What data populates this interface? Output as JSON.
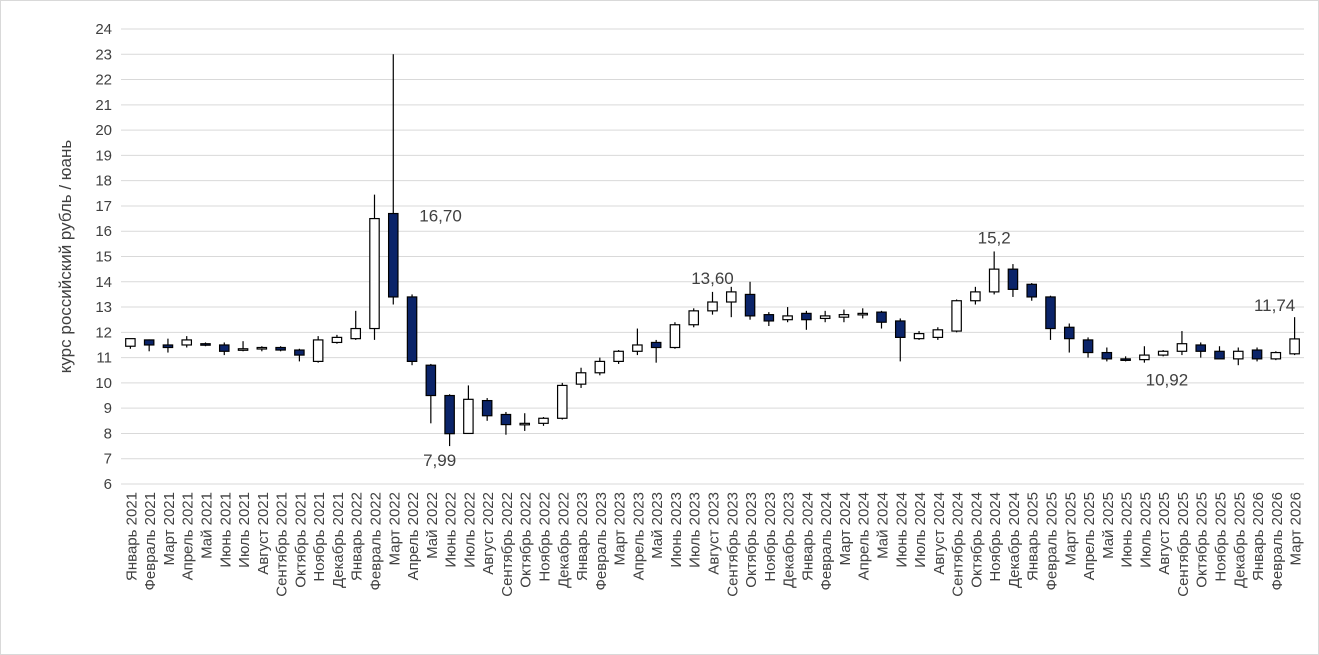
{
  "chart_data": {
    "type": "candlestick",
    "ylabel": "курс российский рубль / юань",
    "ylim": [
      6,
      24
    ],
    "ytick_step": 1,
    "grid": true,
    "colors": {
      "up_fill": "#ffffff",
      "down_fill": "#0b2469",
      "outline": "#000000",
      "grid": "#d9d9d9",
      "text": "#404040"
    },
    "categories": [
      "Январь 2021",
      "Февраль 2021",
      "Март 2021",
      "Апрель 2021",
      "Май 2021",
      "Июнь 2021",
      "Июль 2021",
      "Август 2021",
      "Сентябрь 2021",
      "Октябрь 2021",
      "Ноябрь 2021",
      "Декабрь 2021",
      "Январь 2022",
      "Февраль 2022",
      "Март 2022",
      "Апрель 2022",
      "Май 2022",
      "Июнь 2022",
      "Июль 2022",
      "Август 2022",
      "Сентябрь 2022",
      "Октябрь 2022",
      "Ноябрь 2022",
      "Декабрь 2022",
      "Январь 2023",
      "Февраль 2023",
      "Март 2023",
      "Апрель 2023",
      "Май 2023",
      "Июнь 2023",
      "Июль 2023",
      "Август 2023",
      "Сентябрь 2023",
      "Октябрь 2023",
      "Ноябрь 2023",
      "Декабрь 2023",
      "Январь 2024",
      "Февраль 2024",
      "Март 2024",
      "Апрель 2024",
      "Май 2024",
      "Июнь 2024",
      "Июль 2024",
      "Август 2024",
      "Сентябрь 2024",
      "Октябрь 2024",
      "Ноябрь 2024",
      "Декабрь 2024",
      "Январь 2025",
      "Февраль 2025",
      "Март 2025",
      "Апрель 2025",
      "Май 2025",
      "Июнь 2025",
      "Июль 2025",
      "Август 2025",
      "Сентябрь 2025",
      "Октябрь 2025",
      "Ноябрь 2025",
      "Декабрь 2025",
      "Январь 2026",
      "Февраль 2026",
      "Март 2026"
    ],
    "ohlc": [
      [
        11.45,
        11.75,
        11.35,
        11.75
      ],
      [
        11.7,
        11.72,
        11.25,
        11.5
      ],
      [
        11.5,
        11.75,
        11.2,
        11.4
      ],
      [
        11.5,
        11.85,
        11.4,
        11.7
      ],
      [
        11.55,
        11.6,
        11.45,
        11.5
      ],
      [
        11.5,
        11.6,
        11.1,
        11.25
      ],
      [
        11.3,
        11.65,
        11.25,
        11.35
      ],
      [
        11.35,
        11.45,
        11.25,
        11.4
      ],
      [
        11.4,
        11.45,
        11.25,
        11.3
      ],
      [
        11.3,
        11.35,
        10.85,
        11.1
      ],
      [
        10.85,
        11.85,
        10.8,
        11.7
      ],
      [
        11.6,
        11.9,
        11.55,
        11.8
      ],
      [
        11.75,
        12.85,
        11.7,
        12.15
      ],
      [
        12.15,
        17.45,
        11.7,
        16.5
      ],
      [
        16.7,
        23.0,
        13.1,
        13.4
      ],
      [
        13.4,
        13.5,
        10.7,
        10.85
      ],
      [
        10.7,
        10.75,
        8.4,
        9.5
      ],
      [
        9.5,
        9.55,
        7.5,
        7.99
      ],
      [
        8.0,
        9.9,
        8.0,
        9.35
      ],
      [
        9.3,
        9.4,
        8.5,
        8.7
      ],
      [
        8.75,
        8.85,
        7.95,
        8.35
      ],
      [
        8.35,
        8.8,
        8.1,
        8.4
      ],
      [
        8.4,
        8.65,
        8.3,
        8.6
      ],
      [
        8.6,
        10.0,
        8.55,
        9.9
      ],
      [
        9.95,
        10.6,
        9.8,
        10.4
      ],
      [
        10.4,
        11.0,
        10.3,
        10.85
      ],
      [
        10.85,
        11.3,
        10.75,
        11.25
      ],
      [
        11.25,
        12.15,
        11.1,
        11.5
      ],
      [
        11.6,
        11.7,
        10.8,
        11.4
      ],
      [
        11.4,
        12.4,
        11.35,
        12.3
      ],
      [
        12.3,
        12.95,
        12.2,
        12.85
      ],
      [
        12.85,
        13.6,
        12.7,
        13.2
      ],
      [
        13.2,
        13.8,
        12.6,
        13.6
      ],
      [
        13.5,
        14.0,
        12.5,
        12.65
      ],
      [
        12.7,
        12.8,
        12.25,
        12.45
      ],
      [
        12.5,
        13.0,
        12.4,
        12.65
      ],
      [
        12.75,
        12.85,
        12.1,
        12.5
      ],
      [
        12.55,
        12.85,
        12.4,
        12.65
      ],
      [
        12.6,
        12.9,
        12.4,
        12.7
      ],
      [
        12.7,
        12.95,
        12.55,
        12.75
      ],
      [
        12.8,
        12.85,
        12.15,
        12.4
      ],
      [
        12.45,
        12.55,
        10.85,
        11.8
      ],
      [
        11.75,
        12.05,
        11.7,
        11.95
      ],
      [
        11.8,
        12.2,
        11.7,
        12.1
      ],
      [
        12.05,
        13.3,
        12.0,
        13.25
      ],
      [
        13.25,
        13.8,
        13.1,
        13.6
      ],
      [
        13.6,
        15.2,
        13.5,
        14.5
      ],
      [
        14.5,
        14.7,
        13.4,
        13.7
      ],
      [
        13.9,
        13.95,
        13.25,
        13.4
      ],
      [
        13.4,
        13.45,
        11.7,
        12.15
      ],
      [
        12.2,
        12.35,
        11.2,
        11.75
      ],
      [
        11.7,
        11.8,
        11.0,
        11.2
      ],
      [
        11.2,
        11.4,
        10.85,
        10.95
      ],
      [
        10.95,
        11.05,
        10.85,
        10.92
      ],
      [
        10.92,
        11.45,
        10.8,
        11.1
      ],
      [
        11.1,
        11.3,
        11.05,
        11.25
      ],
      [
        11.25,
        12.05,
        11.1,
        11.55
      ],
      [
        11.5,
        11.6,
        11.0,
        11.25
      ],
      [
        11.25,
        11.45,
        10.95,
        10.95
      ],
      [
        10.95,
        11.4,
        10.7,
        11.25
      ],
      [
        11.3,
        11.4,
        10.85,
        10.95
      ],
      [
        10.95,
        11.25,
        10.9,
        11.2
      ],
      [
        11.15,
        12.6,
        11.1,
        11.74
      ]
    ],
    "annotations": [
      {
        "index": 14,
        "text": "16,70",
        "anchor": "right-of-high-body"
      },
      {
        "index": 17,
        "text": "7,99",
        "anchor": "below"
      },
      {
        "index": 31,
        "text": "13,60",
        "anchor": "above"
      },
      {
        "index": 46,
        "text": "15,2",
        "anchor": "above"
      },
      {
        "index": 53,
        "text": "10,92",
        "anchor": "below-right"
      },
      {
        "index": 62,
        "text": "11,74",
        "anchor": "above-left"
      }
    ]
  }
}
